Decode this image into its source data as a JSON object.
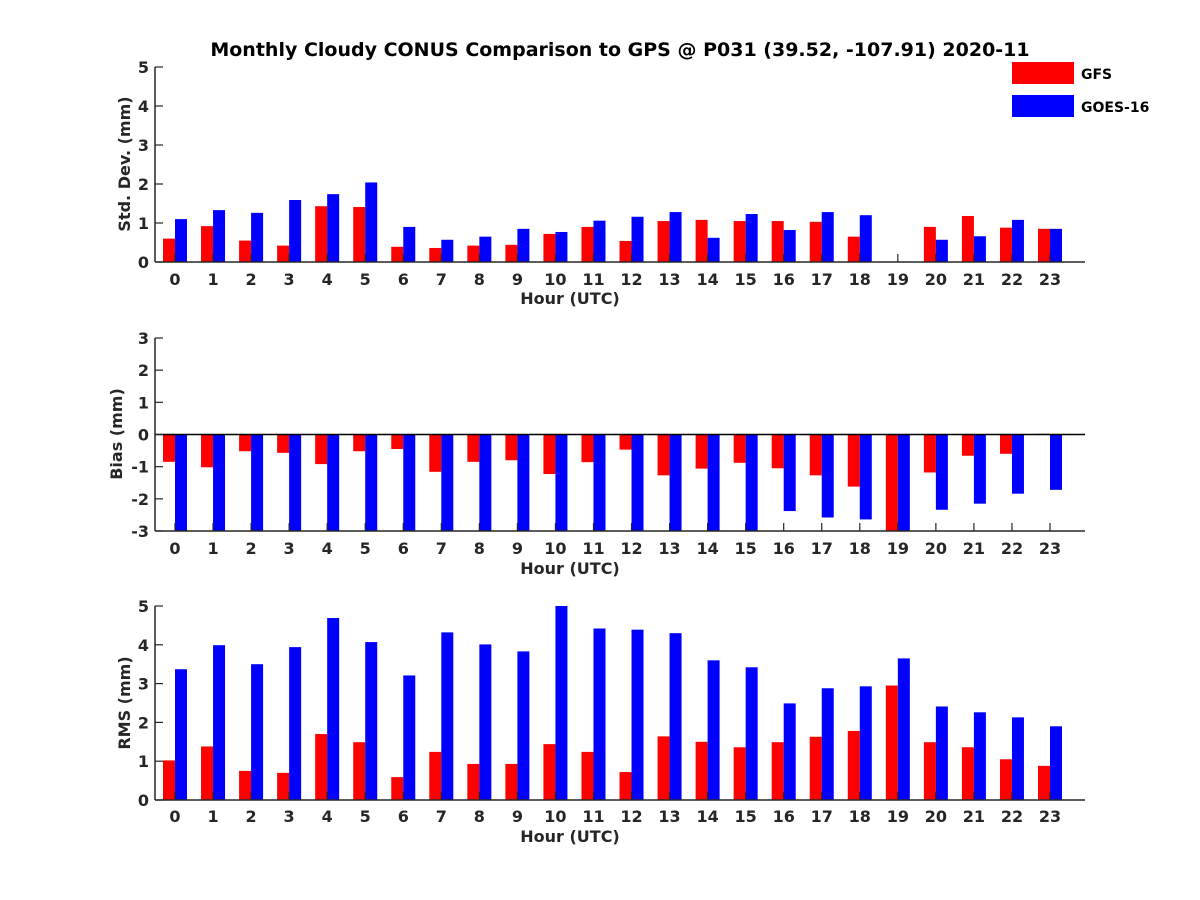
{
  "title": "Monthly Cloudy CONUS Comparison to GPS @ P031 (39.52, -107.91) 2020-11",
  "legend": [
    {
      "name": "GFS",
      "color": "#ff0000"
    },
    {
      "name": "GOES-16",
      "color": "#0000ff"
    }
  ],
  "colors": {
    "gfs": "#ff0000",
    "goes": "#0000ff",
    "axis": "#262626"
  },
  "chart_data": [
    {
      "type": "bar",
      "xlabel": "Hour (UTC)",
      "ylabel": "Std. Dev. (mm)",
      "ylim": [
        0,
        5
      ],
      "yticks": [
        "0",
        "1",
        "2",
        "3",
        "4",
        "5"
      ],
      "categories": [
        "0",
        "1",
        "2",
        "3",
        "4",
        "5",
        "6",
        "7",
        "8",
        "9",
        "10",
        "11",
        "12",
        "13",
        "14",
        "15",
        "16",
        "17",
        "18",
        "19",
        "20",
        "21",
        "22",
        "23"
      ],
      "series": [
        {
          "name": "GFS",
          "values": [
            0.6,
            0.92,
            0.55,
            0.42,
            1.43,
            1.41,
            0.39,
            0.36,
            0.42,
            0.44,
            0.72,
            0.9,
            0.54,
            1.05,
            1.08,
            1.05,
            1.05,
            1.03,
            0.65,
            0,
            0.9,
            1.18,
            0.88,
            0.85
          ]
        },
        {
          "name": "GOES-16",
          "values": [
            1.1,
            1.33,
            1.26,
            1.59,
            1.74,
            2.04,
            0.9,
            0.57,
            0.65,
            0.85,
            0.77,
            1.06,
            1.16,
            1.28,
            0.62,
            1.23,
            0.82,
            1.28,
            1.2,
            0,
            0.57,
            0.66,
            1.08,
            0.85
          ]
        }
      ]
    },
    {
      "type": "bar",
      "xlabel": "Hour (UTC)",
      "ylabel": "Bias (mm)",
      "ylim": [
        -3,
        3
      ],
      "yticks": [
        "-3",
        "-2",
        "-1",
        "0",
        "1",
        "2",
        "3"
      ],
      "categories": [
        "0",
        "1",
        "2",
        "3",
        "4",
        "5",
        "6",
        "7",
        "8",
        "9",
        "10",
        "11",
        "12",
        "13",
        "14",
        "15",
        "16",
        "17",
        "18",
        "19",
        "20",
        "21",
        "22",
        "23"
      ],
      "series": [
        {
          "name": "GFS",
          "values": [
            -0.85,
            -1.02,
            -0.52,
            -0.57,
            -0.92,
            -0.52,
            -0.45,
            -1.16,
            -0.85,
            -0.8,
            -1.23,
            -0.86,
            -0.47,
            -1.27,
            -1.06,
            -0.88,
            -1.05,
            -1.27,
            -1.62,
            -3.0,
            -1.18,
            -0.66,
            -0.6,
            0.02
          ]
        },
        {
          "name": "GOES-16",
          "values": [
            -3.0,
            -3.0,
            -3.0,
            -3.0,
            -3.0,
            -3.0,
            -3.0,
            -3.0,
            -3.0,
            -3.0,
            -3.0,
            -3.0,
            -3.0,
            -3.0,
            -3.0,
            -3.0,
            -2.38,
            -2.58,
            -2.64,
            -3.0,
            -2.34,
            -2.15,
            -1.84,
            -1.72
          ]
        }
      ]
    },
    {
      "type": "bar",
      "xlabel": "Hour (UTC)",
      "ylabel": "RMS (mm)",
      "ylim": [
        0,
        5
      ],
      "yticks": [
        "0",
        "1",
        "2",
        "3",
        "4",
        "5"
      ],
      "categories": [
        "0",
        "1",
        "2",
        "3",
        "4",
        "5",
        "6",
        "7",
        "8",
        "9",
        "10",
        "11",
        "12",
        "13",
        "14",
        "15",
        "16",
        "17",
        "18",
        "19",
        "20",
        "21",
        "22",
        "23"
      ],
      "series": [
        {
          "name": "GFS",
          "values": [
            1.02,
            1.38,
            0.75,
            0.7,
            1.7,
            1.49,
            0.59,
            1.24,
            0.93,
            0.93,
            1.44,
            1.24,
            0.72,
            1.64,
            1.5,
            1.36,
            1.49,
            1.63,
            1.78,
            2.95,
            1.49,
            1.36,
            1.05,
            0.88
          ]
        },
        {
          "name": "GOES-16",
          "values": [
            3.37,
            3.99,
            3.5,
            3.94,
            4.69,
            4.07,
            3.21,
            4.32,
            4.01,
            3.83,
            5.0,
            4.42,
            4.39,
            4.3,
            3.6,
            3.42,
            2.49,
            2.88,
            2.93,
            3.65,
            2.41,
            2.26,
            2.13,
            1.9
          ]
        }
      ]
    }
  ]
}
